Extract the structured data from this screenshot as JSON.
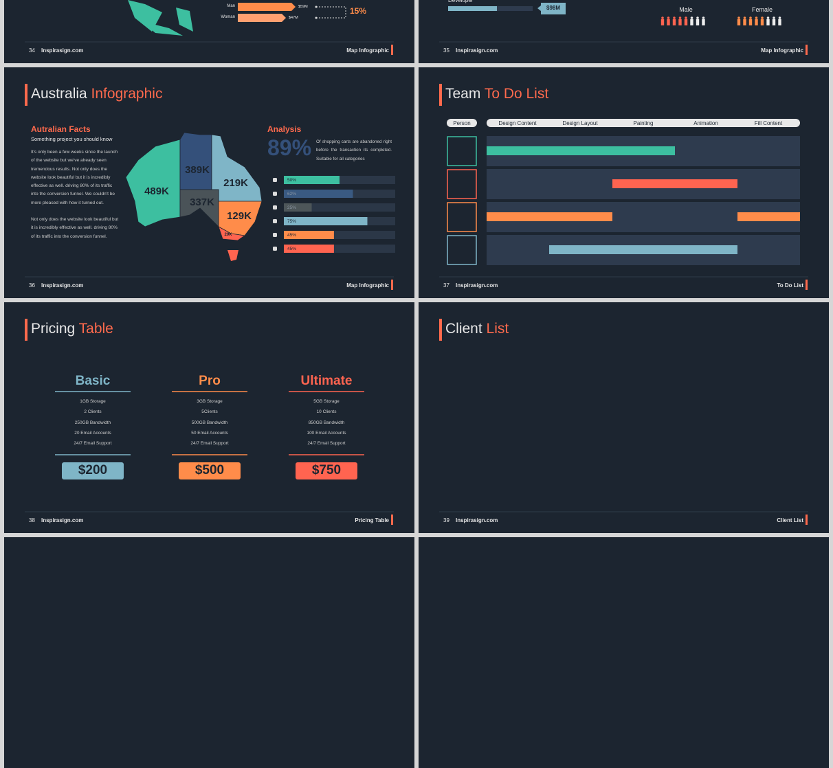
{
  "slides": [
    {
      "number": "34",
      "site": "Inspirasign.com",
      "section": "Map Infographic",
      "stats": [
        {
          "label": "Man",
          "amount": "$59M"
        },
        {
          "label": "Woman",
          "amount": "$47M"
        }
      ],
      "change": "15%"
    },
    {
      "number": "35",
      "site": "Inspirasign.com",
      "section": "Map Infographic",
      "role": "Developer",
      "amount": "$98M",
      "genders": [
        "Male",
        "Female"
      ]
    },
    {
      "number": "36",
      "site": "Inspirasign.com",
      "section": "Map Infographic",
      "title": "Australia",
      "title_accent": "Infographic",
      "facts": {
        "heading": "Autralian Facts",
        "subheading": "Something project you should know",
        "paragraphs": [
          "It's only been a few weeks since the launch of the website but we've already seen tremendous results. Not only does the website look beautiful but it is incredibly effective as well. driving 80% of its traffic into the conversion funnel. We couldn't be more pleased with how it turned out.",
          "Not only does the website look beautiful but it is incredibly effective as well. driving 80% of its traffic into the conversion funnel."
        ]
      },
      "regions": [
        "489K",
        "389K",
        "219K",
        "337K",
        "129K",
        "29K"
      ],
      "analysis": {
        "heading": "Analysis",
        "big": "89%",
        "text": "Of shopping carts are abandoned right before the transaction its completed. Suitable for all categories",
        "values": [
          50,
          62,
          25,
          75,
          45,
          45
        ],
        "value_labels": [
          "50%",
          "62%",
          "25%",
          "75%",
          "45%",
          "45%"
        ]
      }
    },
    {
      "number": "37",
      "site": "Inspirasign.com",
      "section": "To Do List",
      "title": "Team",
      "title_accent": "To Do List",
      "person": "Person",
      "tasks": [
        "Design Content",
        "Design Layout",
        "Painting",
        "Animation",
        "Fill Content"
      ]
    },
    {
      "number": "38",
      "site": "Inspirasign.com",
      "section": "Pricing Table",
      "title": "Pricing",
      "title_accent": "Table",
      "plans": [
        {
          "name": "Basic",
          "features": [
            "1GB Storage",
            "2 Clients",
            "250GB Bandwidth",
            "20 Email Accounts",
            "24/7 Email Support"
          ],
          "price": "$200"
        },
        {
          "name": "Pro",
          "features": [
            "3GB Storage",
            "5Clients",
            "500GB Bandwidth",
            "50 Email Accounts",
            "24/7 Email Support"
          ],
          "price": "$500"
        },
        {
          "name": "Ultimate",
          "features": [
            "5GB Storage",
            "10 Clients",
            "850GB Bandwidth",
            "100 Email Accounts",
            "24/7 Email Support"
          ],
          "price": "$750"
        }
      ]
    },
    {
      "number": "39",
      "site": "Inspirasign.com",
      "section": "Client List",
      "title": "Client",
      "title_accent": "List"
    }
  ]
}
